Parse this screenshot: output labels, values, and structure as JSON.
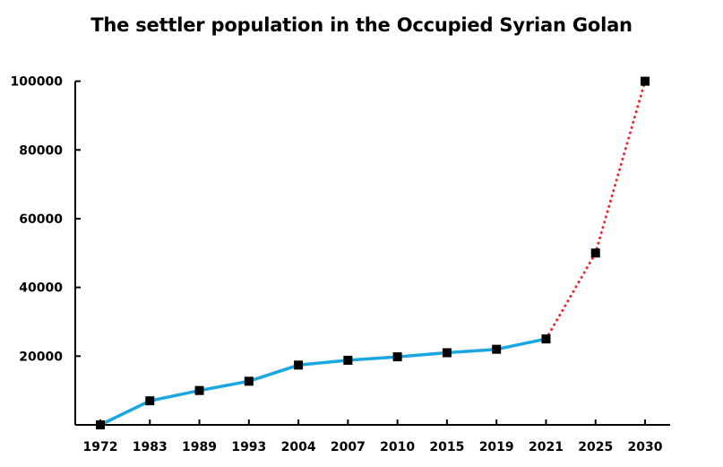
{
  "chart_data": {
    "type": "line",
    "title": "The settler population in the Occupied Syrian Golan",
    "xlabel": "",
    "ylabel": "",
    "categories": [
      "1972",
      "1983",
      "1989",
      "1993",
      "2004",
      "2007",
      "2010",
      "2015",
      "2019",
      "2021",
      "2025",
      "2030"
    ],
    "y_ticks": [
      20000,
      40000,
      60000,
      80000,
      100000
    ],
    "ylim": [
      0,
      100000
    ],
    "grid": false,
    "series": [
      {
        "style": "solid",
        "color": "#1aa7e0",
        "points": [
          {
            "x": "1972",
            "y": 0
          },
          {
            "x": "1983",
            "y": 7000
          },
          {
            "x": "1989",
            "y": 10000
          },
          {
            "x": "1993",
            "y": 12700
          },
          {
            "x": "2004",
            "y": 17400
          },
          {
            "x": "2007",
            "y": 18800
          },
          {
            "x": "2010",
            "y": 19800
          },
          {
            "x": "2015",
            "y": 21000
          },
          {
            "x": "2019",
            "y": 22000
          },
          {
            "x": "2021",
            "y": 25000
          }
        ]
      },
      {
        "style": "dotted",
        "color": "#e8262c",
        "points": [
          {
            "x": "2021",
            "y": 25000
          },
          {
            "x": "2025",
            "y": 50000
          },
          {
            "x": "2030",
            "y": 100000
          }
        ]
      }
    ],
    "marker_color": "#000000"
  }
}
